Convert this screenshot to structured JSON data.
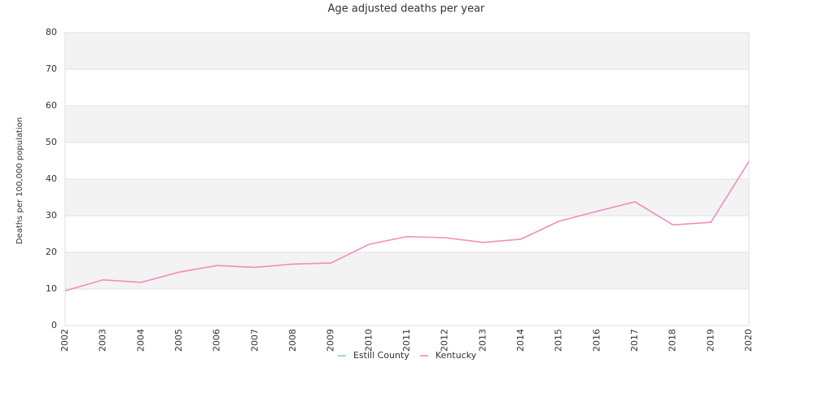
{
  "chart_data": {
    "type": "line",
    "title": "Age adjusted deaths per year",
    "y_label": "Deaths per 100,000 population",
    "categories": [
      "2002",
      "2003",
      "2004",
      "2005",
      "2006",
      "2007",
      "2008",
      "2009",
      "2010",
      "2011",
      "2012",
      "2013",
      "2014",
      "2015",
      "2016",
      "2017",
      "2018",
      "2019",
      "2020"
    ],
    "series": [
      {
        "name": "Estill County",
        "color": "#8ecae6",
        "values": [
          null,
          null,
          null,
          null,
          null,
          null,
          null,
          null,
          null,
          null,
          null,
          null,
          null,
          null,
          null,
          null,
          null,
          null,
          null
        ]
      },
      {
        "name": "Kentucky",
        "color": "#f28cc0",
        "values": [
          9.5,
          12.5,
          11.8,
          14.6,
          16.4,
          15.9,
          16.8,
          17.1,
          22.2,
          24.3,
          24.0,
          22.7,
          23.6,
          28.5,
          31.2,
          33.8,
          27.5,
          28.2,
          44.8
        ]
      }
    ],
    "ylim": [
      0,
      80
    ],
    "yticks": [
      0,
      10,
      20,
      30,
      40,
      50,
      60,
      70,
      80
    ],
    "grid": true,
    "legend": "bottom"
  }
}
